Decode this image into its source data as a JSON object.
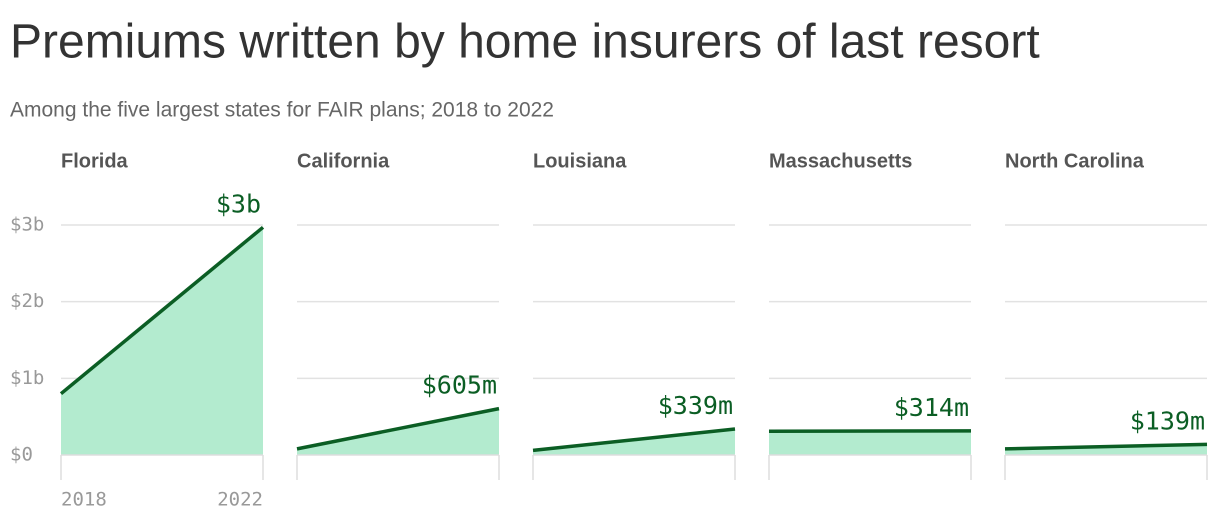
{
  "chart_data": {
    "type": "area",
    "title": "Premiums written by home insurers of last resort",
    "subtitle": "Among the five largest states for FAIR plans; 2018 to 2022",
    "x": [
      2018,
      2022
    ],
    "xlim": [
      2018,
      2022
    ],
    "xticks": [
      2018,
      2022
    ],
    "ylim": [
      0,
      3
    ],
    "yticks": [
      {
        "value": 0,
        "label": "$0"
      },
      {
        "value": 1,
        "label": "$1b"
      },
      {
        "value": 2,
        "label": "$2b"
      },
      {
        "value": 3,
        "label": "$3b"
      }
    ],
    "grid": true,
    "line_color": "#0b5e24",
    "fill_color": "#b3ebcf",
    "series": [
      {
        "name": "Florida",
        "values": [
          0.8,
          2.97
        ],
        "value_labels": [
          null,
          "$3b"
        ]
      },
      {
        "name": "California",
        "values": [
          0.08,
          0.605
        ],
        "value_labels": [
          null,
          "$605m"
        ]
      },
      {
        "name": "Louisiana",
        "values": [
          0.06,
          0.339
        ],
        "value_labels": [
          null,
          "$339m"
        ]
      },
      {
        "name": "Massachusetts",
        "values": [
          0.31,
          0.314
        ],
        "value_labels": [
          null,
          "$314m"
        ]
      },
      {
        "name": "North Carolina",
        "values": [
          0.08,
          0.139
        ],
        "value_labels": [
          null,
          "$139m"
        ]
      }
    ]
  }
}
